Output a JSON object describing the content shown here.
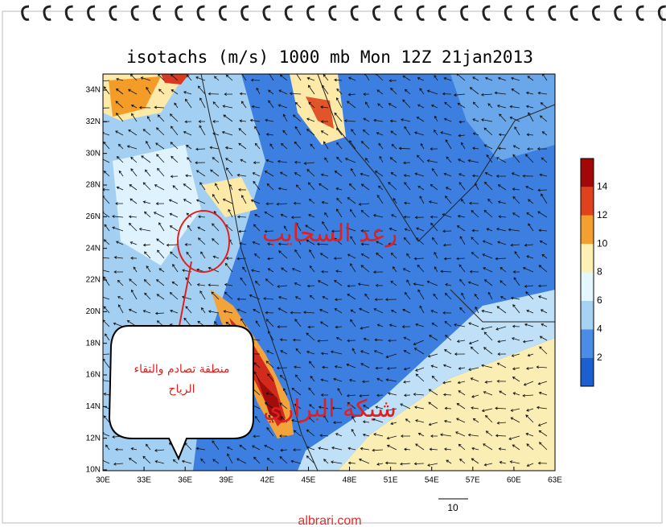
{
  "title": "isotachs (m/s) 1000 mb Mon 12Z 21jan2013",
  "map": {
    "y_labels": [
      "34N",
      "32N",
      "30N",
      "28N",
      "26N",
      "24N",
      "22N",
      "20N",
      "18N",
      "16N",
      "14N",
      "12N",
      "10N"
    ],
    "x_labels": [
      "30E",
      "33E",
      "36E",
      "39E",
      "42E",
      "45E",
      "48E",
      "51E",
      "54E",
      "57E",
      "60E",
      "63E"
    ]
  },
  "colorbar": {
    "ticks": [
      2,
      4,
      6,
      8,
      10,
      12,
      14
    ]
  },
  "vector_scale": 10,
  "annotations": {
    "upper": "رعد السحايب",
    "lower": "شبكة البراري",
    "callout": [
      "منطقة تصادم والتقاء",
      "الرياح"
    ]
  },
  "watermark": "albrari.com"
}
